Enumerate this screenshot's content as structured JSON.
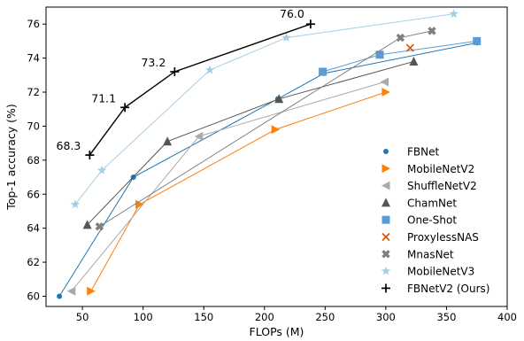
{
  "chart_data": {
    "type": "line",
    "title": "",
    "xlabel": "FLOPs (M)",
    "ylabel": "Top-1 accuracy (%)",
    "xlim": [
      20,
      400
    ],
    "ylim": [
      59.4,
      77.0
    ],
    "xticks": [
      50,
      100,
      150,
      200,
      250,
      300,
      350,
      400
    ],
    "yticks": [
      60,
      62,
      64,
      66,
      68,
      70,
      72,
      74,
      76
    ],
    "grid": false,
    "legend_position": "lower-right",
    "series": [
      {
        "name": "FBNet",
        "marker": "circle",
        "color": "#1f77b4",
        "x": [
          31,
          92,
          211,
          249,
          375
        ],
        "y": [
          60.0,
          67.0,
          71.6,
          73.1,
          74.9
        ]
      },
      {
        "name": "MobileNetV2",
        "marker": "triangle-right",
        "color": "#ff7f0e",
        "x": [
          57,
          97,
          209,
          300
        ],
        "y": [
          60.3,
          65.4,
          69.8,
          72.0
        ]
      },
      {
        "name": "ShuffleNetV2",
        "marker": "triangle-left",
        "color": "#aaaaaa",
        "x": [
          41,
          146,
          299
        ],
        "y": [
          60.3,
          69.4,
          72.6
        ]
      },
      {
        "name": "ChamNet",
        "marker": "triangle-up",
        "color": "#555555",
        "x": [
          54,
          120,
          212,
          323
        ],
        "y": [
          64.2,
          69.1,
          71.6,
          73.8
        ]
      },
      {
        "name": "One-Shot",
        "marker": "square",
        "color": "#5b9bd5",
        "x": [
          248,
          295,
          375
        ],
        "y": [
          73.2,
          74.2,
          75.0
        ]
      },
      {
        "name": "ProxylessNAS",
        "marker": "x",
        "color": "#d35400",
        "x": [
          320
        ],
        "y": [
          74.6
        ]
      },
      {
        "name": "MnasNet",
        "marker": "x-filled",
        "color": "#7f7f7f",
        "x": [
          64,
          312,
          338
        ],
        "y": [
          64.1,
          75.2,
          75.6
        ]
      },
      {
        "name": "MobileNetV3",
        "marker": "star",
        "color": "#a6cee3",
        "x": [
          44,
          66,
          155,
          218,
          356
        ],
        "y": [
          65.4,
          67.4,
          73.3,
          75.2,
          76.6
        ]
      },
      {
        "name": "FBNetV2 (Ours)",
        "marker": "plus",
        "color": "#000000",
        "x": [
          56,
          85,
          126,
          238
        ],
        "y": [
          68.3,
          71.1,
          73.2,
          76.0
        ]
      }
    ],
    "annotations": [
      {
        "text": "68.3",
        "x": 56,
        "y": 68.3
      },
      {
        "text": "71.1",
        "x": 85,
        "y": 71.1
      },
      {
        "text": "73.2",
        "x": 126,
        "y": 73.2
      },
      {
        "text": "76.0",
        "x": 238,
        "y": 76.0
      }
    ]
  }
}
